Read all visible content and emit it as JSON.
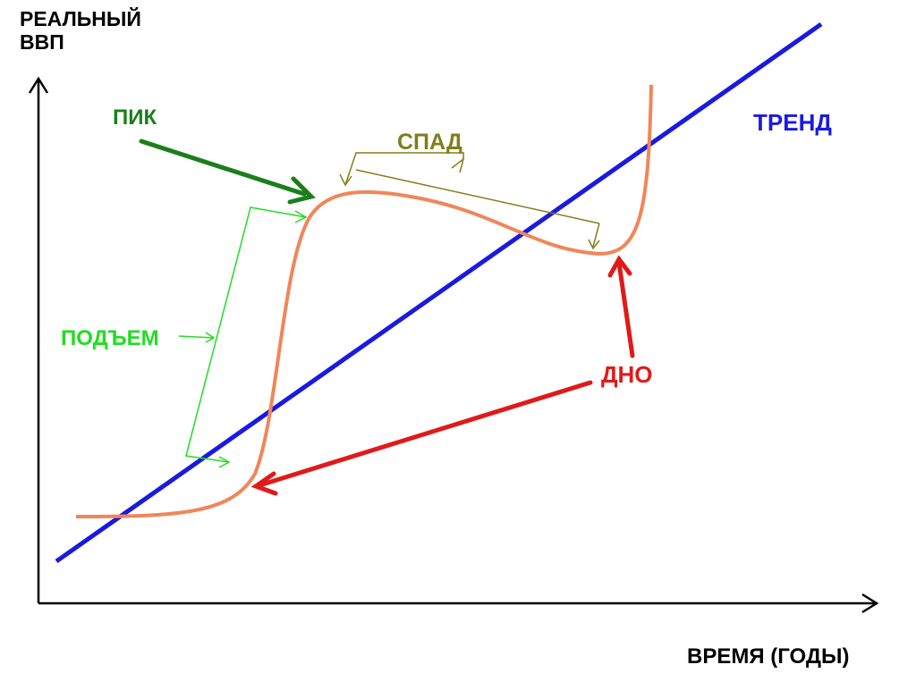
{
  "axes": {
    "y_label_line1": "РЕАЛЬНЫЙ",
    "y_label_line2": "ВВП",
    "x_label": "ВРЕМЯ (ГОДЫ)"
  },
  "labels": {
    "peak": "ПИК",
    "trend": "ТРЕНД",
    "decline": "СПАД",
    "rise": "ПОДЪЕМ",
    "trough": "ДНО"
  },
  "colors": {
    "axis": "#000000",
    "cycle_curve": "#f0865a",
    "trend_line": "#1a1adf",
    "peak": "#1a7f1a",
    "decline": "#7f7f1a",
    "rise": "#22dd22",
    "trough": "#e01a1a",
    "trend_text": "#1a1adf"
  }
}
